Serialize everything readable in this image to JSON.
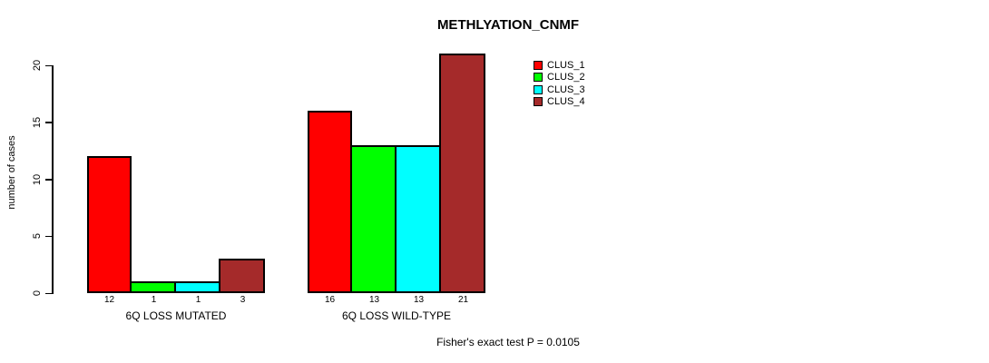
{
  "chart_data": {
    "type": "bar",
    "title": "METHLYATION_CNMF",
    "ylabel": "number of cases",
    "xlabel": "",
    "ylim": [
      0,
      20
    ],
    "yticks": [
      0,
      5,
      10,
      15,
      20
    ],
    "grid": false,
    "legend_position": "top-right",
    "bar_value_labels_shown": true,
    "categories": [
      "6Q LOSS MUTATED",
      "6Q LOSS WILD-TYPE"
    ],
    "series": [
      {
        "name": "CLUS_1",
        "color": "#FF0000",
        "values": [
          12,
          16
        ]
      },
      {
        "name": "CLUS_2",
        "color": "#00FF00",
        "values": [
          1,
          13
        ]
      },
      {
        "name": "CLUS_3",
        "color": "#00FFFF",
        "values": [
          1,
          13
        ]
      },
      {
        "name": "CLUS_4",
        "color": "#A52A2A",
        "values": [
          3,
          21
        ]
      }
    ],
    "annotation": "Fisher's exact test P = 0.0105"
  },
  "colors": {
    "axis": "#000000",
    "bar_border": "#000000",
    "background": "#FFFFFF",
    "text": "#000000"
  }
}
